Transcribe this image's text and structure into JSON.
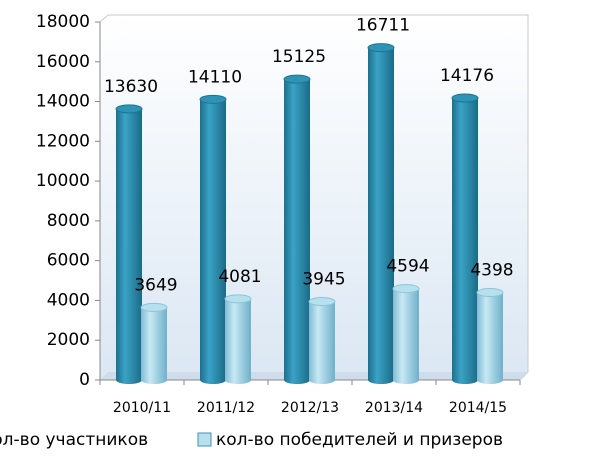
{
  "chart_data": {
    "type": "bar3d",
    "categories": [
      "2010/11",
      "2011/12",
      "2012/13",
      "2013/14",
      "2014/15"
    ],
    "series": [
      {
        "name": "кол-во участников",
        "color": "#2c8bad",
        "values": [
          13630,
          14110,
          15125,
          16711,
          14176
        ]
      },
      {
        "name": "кол-во победителей и призеров",
        "color": "#9ed2e6",
        "values": [
          3649,
          4081,
          3945,
          4594,
          4398
        ]
      }
    ],
    "ylim": [
      0,
      18000
    ],
    "yticks": [
      0,
      2000,
      4000,
      6000,
      8000,
      10000,
      12000,
      14000,
      16000,
      18000
    ],
    "grid": false
  }
}
